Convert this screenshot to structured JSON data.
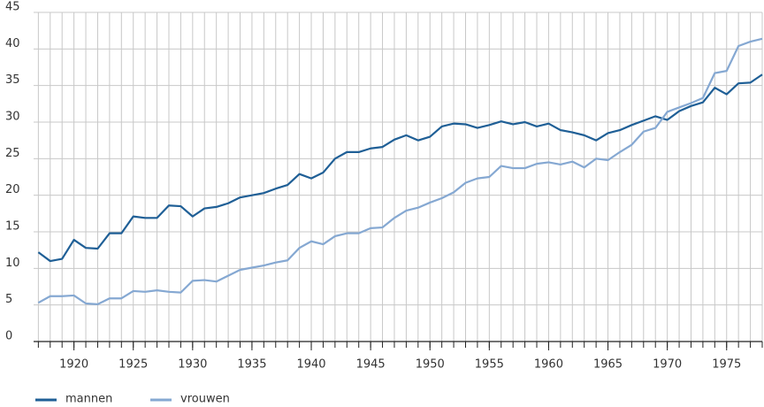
{
  "chart_data": {
    "type": "line",
    "x": [
      1917,
      1918,
      1919,
      1920,
      1921,
      1922,
      1923,
      1924,
      1925,
      1926,
      1927,
      1928,
      1929,
      1930,
      1931,
      1932,
      1933,
      1934,
      1935,
      1936,
      1937,
      1938,
      1939,
      1940,
      1941,
      1942,
      1943,
      1944,
      1945,
      1946,
      1947,
      1948,
      1949,
      1950,
      1951,
      1952,
      1953,
      1954,
      1955,
      1956,
      1957,
      1958,
      1959,
      1960,
      1961,
      1962,
      1963,
      1964,
      1965,
      1966,
      1967,
      1968,
      1969,
      1970,
      1971,
      1972,
      1973,
      1974,
      1975,
      1976,
      1977,
      1978
    ],
    "series": [
      {
        "name": "mannen",
        "color": "#1f5f96",
        "values": [
          12.2,
          11.0,
          11.3,
          13.9,
          12.8,
          12.7,
          14.8,
          14.8,
          17.1,
          16.9,
          16.9,
          18.6,
          18.5,
          17.1,
          18.2,
          18.4,
          18.9,
          19.7,
          20.0,
          20.3,
          20.9,
          21.4,
          22.9,
          22.3,
          23.1,
          25.0,
          25.9,
          25.9,
          26.4,
          26.6,
          27.6,
          28.2,
          27.5,
          28.0,
          29.4,
          29.8,
          29.7,
          29.2,
          29.6,
          30.1,
          29.7,
          30.0,
          29.4,
          29.8,
          28.9,
          28.6,
          28.2,
          27.5,
          28.5,
          28.9,
          29.6,
          30.2,
          30.8,
          30.3,
          31.5,
          32.2,
          32.7,
          34.7,
          33.8,
          35.3,
          35.4,
          36.5
        ]
      },
      {
        "name": "vrouwen",
        "color": "#85a8d2",
        "values": [
          5.3,
          6.2,
          6.2,
          6.3,
          5.2,
          5.1,
          5.9,
          5.9,
          6.9,
          6.8,
          7.0,
          6.8,
          6.7,
          8.3,
          8.4,
          8.2,
          9.0,
          9.8,
          10.1,
          10.4,
          10.8,
          11.1,
          12.8,
          13.7,
          13.3,
          14.4,
          14.8,
          14.8,
          15.5,
          15.6,
          16.9,
          17.9,
          18.3,
          19.0,
          19.6,
          20.4,
          21.7,
          22.3,
          22.5,
          24.0,
          23.7,
          23.7,
          24.3,
          24.5,
          24.2,
          24.6,
          23.8,
          25.0,
          24.8,
          25.9,
          26.9,
          28.7,
          29.2,
          31.4,
          32.0,
          32.6,
          33.3,
          36.7,
          37.0,
          40.4,
          41.0,
          41.4
        ]
      }
    ],
    "xlim": [
      1916.6,
      1978
    ],
    "xticks": [
      1920,
      1925,
      1930,
      1935,
      1940,
      1945,
      1950,
      1955,
      1960,
      1965,
      1970,
      1975
    ],
    "ylim": [
      0,
      45
    ],
    "yticks": [
      0,
      5,
      10,
      15,
      20,
      25,
      30,
      35,
      40,
      45
    ],
    "grid": true,
    "legend": "bottom"
  }
}
